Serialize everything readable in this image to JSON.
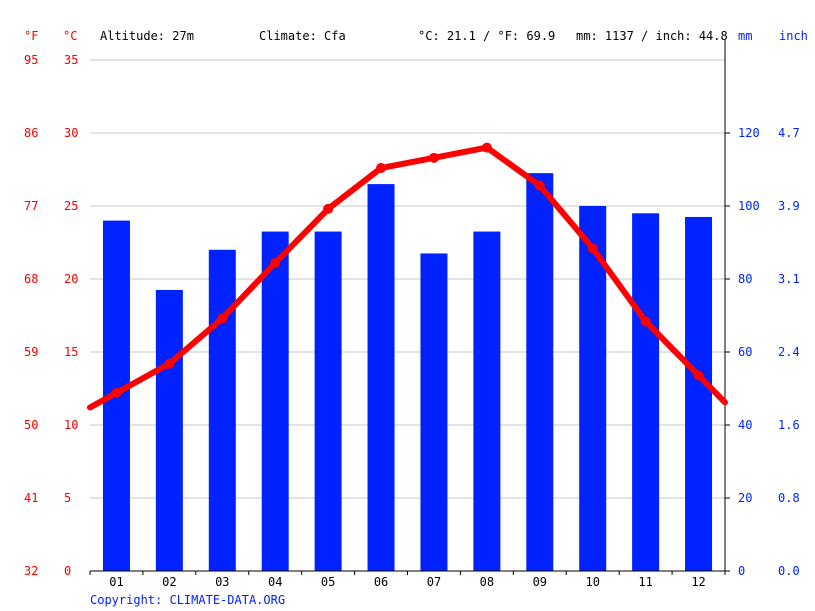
{
  "header": {
    "unit_f": "°F",
    "unit_c": "°C",
    "altitude": "Altitude: 27m",
    "climate": "Climate: Cfa",
    "temp_summary": "°C: 21.1 / °F: 69.9",
    "precip_summary": "mm: 1137 / inch: 44.8",
    "unit_mm": "mm",
    "unit_inch": "inch"
  },
  "footer": {
    "copyright": "Copyright: CLIMATE-DATA.ORG"
  },
  "colors": {
    "temperature": "#ff0000",
    "precipitation": "#0022ff",
    "grid": "#c8c8c8",
    "axis": "#000000"
  },
  "chart_data": {
    "type": "bar",
    "categories": [
      "01",
      "02",
      "03",
      "04",
      "05",
      "06",
      "07",
      "08",
      "09",
      "10",
      "11",
      "12"
    ],
    "series": [
      {
        "type": "bar",
        "axis": "precip_mm",
        "values": [
          96,
          77,
          88,
          93,
          93,
          106,
          87,
          93,
          109,
          100,
          98,
          97
        ]
      },
      {
        "type": "line",
        "axis": "temp_c",
        "values": [
          12.2,
          14.2,
          17.3,
          21.1,
          24.8,
          27.6,
          28.3,
          29.0,
          26.4,
          22.1,
          17.1,
          13.4
        ]
      }
    ],
    "temp_c_ticks": [
      "0",
      "5",
      "10",
      "15",
      "20",
      "25",
      "30",
      "35"
    ],
    "temp_f_ticks": [
      "32",
      "41",
      "50",
      "59",
      "68",
      "77",
      "86",
      "95"
    ],
    "mm_ticks": [
      "0",
      "20",
      "40",
      "60",
      "80",
      "100",
      "120"
    ],
    "inch_ticks": [
      "0.0",
      "0.8",
      "1.6",
      "2.4",
      "3.1",
      "3.9",
      "4.7"
    ],
    "temp_c_range": [
      0,
      35
    ],
    "mm_range": [
      0,
      140
    ],
    "grid": true
  }
}
